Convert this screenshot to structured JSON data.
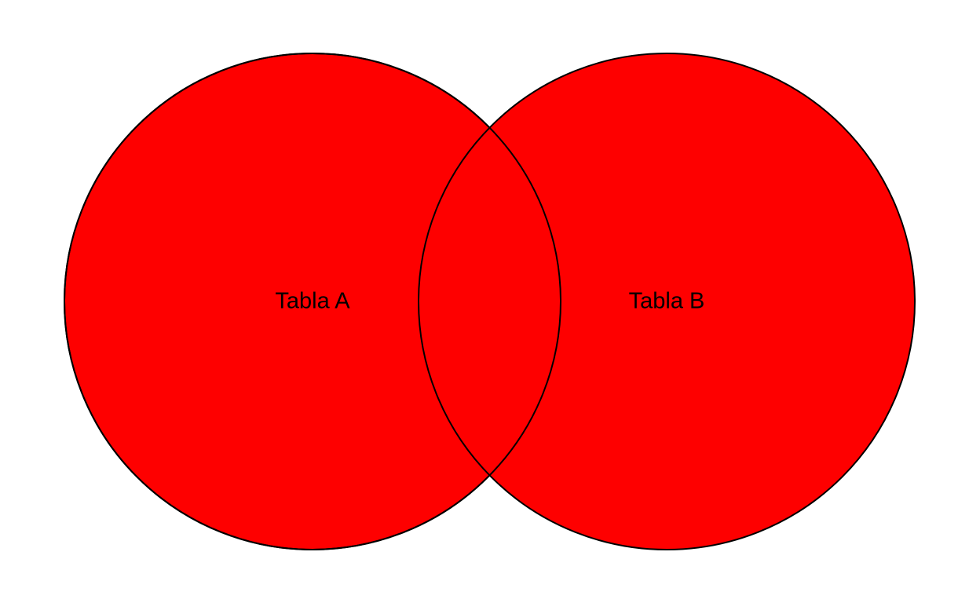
{
  "diagram": {
    "type": "venn",
    "sets": [
      {
        "id": "a",
        "label": "Tabla A"
      },
      {
        "id": "b",
        "label": "Tabla B"
      }
    ],
    "colors": {
      "fill": "#fe0000",
      "stroke": "#000000",
      "background": "#ffffff"
    }
  }
}
